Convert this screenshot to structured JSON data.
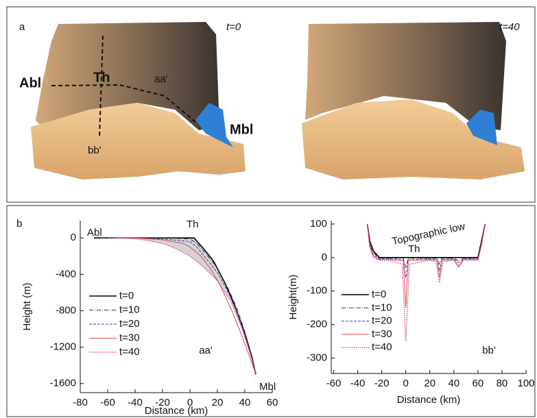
{
  "panel_a": {
    "label": "a",
    "left_time": "t=0",
    "right_time": "t=40",
    "abl": "Abl",
    "th": "Th",
    "aa": "aa'",
    "mbl": "Mbl",
    "bb": "bb'"
  },
  "panel_b": {
    "label": "b"
  },
  "chart_data": [
    {
      "type": "line",
      "xlabel": "Distance (km)",
      "ylabel": "Height (m)",
      "xlim": [
        -80,
        60
      ],
      "xticks": [
        -80,
        -60,
        -40,
        -20,
        0,
        20,
        40,
        60
      ],
      "ylim": [
        -1700,
        190
      ],
      "yticks": [
        0,
        -400,
        -800,
        -1200,
        -1600
      ],
      "annotations": [
        "Abl",
        "Th",
        "aa'",
        "Mbl"
      ],
      "series": [
        {
          "name": "t=0",
          "color": "#000000",
          "x": [
            -70,
            -40,
            -20,
            0,
            3,
            10,
            17,
            25,
            32,
            40,
            45,
            48
          ],
          "values": [
            0,
            0,
            0,
            0,
            0,
            -120,
            -250,
            -480,
            -720,
            -1050,
            -1300,
            -1500
          ]
        },
        {
          "name": "t=10",
          "color": "#333333",
          "x": [
            -65,
            -40,
            -20,
            0,
            5,
            12,
            20,
            28,
            35,
            42,
            46,
            48
          ],
          "values": [
            0,
            0,
            0,
            -10,
            -60,
            -180,
            -330,
            -560,
            -800,
            -1130,
            -1350,
            -1490
          ]
        },
        {
          "name": "t=20",
          "color": "#3a3aa8",
          "x": [
            -60,
            -40,
            -20,
            0,
            5,
            12,
            20,
            28,
            35,
            42,
            46,
            48
          ],
          "values": [
            0,
            0,
            -10,
            -40,
            -100,
            -230,
            -380,
            -600,
            -840,
            -1160,
            -1370,
            -1490
          ]
        },
        {
          "name": "t=30",
          "color": "#e04848",
          "x": [
            -55,
            -40,
            -20,
            -5,
            0,
            8,
            15,
            22,
            30,
            38,
            44,
            48
          ],
          "values": [
            0,
            0,
            -20,
            -60,
            -100,
            -200,
            -340,
            -520,
            -780,
            -1080,
            -1330,
            -1490
          ]
        },
        {
          "name": "t=40",
          "color": "#d02a80",
          "x": [
            -50,
            -40,
            -30,
            -20,
            -10,
            0,
            10,
            20,
            30,
            38,
            44,
            48
          ],
          "values": [
            0,
            -10,
            -30,
            -60,
            -120,
            -200,
            -320,
            -470,
            -700,
            -1000,
            -1280,
            -1480
          ]
        }
      ]
    },
    {
      "type": "line",
      "xlabel": "Distance (km)",
      "ylabel": "Height(m)",
      "xlim": [
        -62,
        100
      ],
      "xticks": [
        -60,
        -40,
        -20,
        0,
        20,
        40,
        60,
        80,
        100
      ],
      "ylim": [
        -346,
        110
      ],
      "yticks": [
        100,
        0,
        -100,
        -200,
        -300
      ],
      "annotations": [
        "Topographic low",
        "Th",
        "bb'"
      ],
      "series": [
        {
          "name": "t=0",
          "color": "#000000",
          "x": [
            -32,
            -30,
            -27,
            -22,
            -15,
            0,
            20,
            40,
            60,
            63,
            66
          ],
          "values": [
            100,
            50,
            20,
            0,
            0,
            0,
            0,
            0,
            0,
            50,
            100
          ]
        },
        {
          "name": "t=10",
          "color": "#333333",
          "x": [
            -32,
            -30,
            -27,
            -22,
            -15,
            -2,
            0,
            2,
            20,
            26,
            28,
            30,
            40,
            44,
            48,
            60,
            63,
            66
          ],
          "values": [
            100,
            45,
            15,
            -2,
            -2,
            -2,
            -30,
            -2,
            -2,
            -2,
            -20,
            -2,
            -2,
            -10,
            -2,
            -2,
            50,
            100
          ]
        },
        {
          "name": "t=20",
          "color": "#3a3aa8",
          "x": [
            -32,
            -30,
            -27,
            -22,
            -15,
            -2,
            0,
            2,
            20,
            26,
            28,
            30,
            40,
            44,
            48,
            60,
            63,
            66
          ],
          "values": [
            100,
            40,
            10,
            -4,
            -4,
            -6,
            -60,
            -6,
            -4,
            -5,
            -40,
            -5,
            -4,
            -15,
            -4,
            -4,
            45,
            100
          ]
        },
        {
          "name": "t=30",
          "color": "#e04848",
          "x": [
            -32,
            -30,
            -27,
            -22,
            -15,
            -2,
            0,
            2,
            20,
            26,
            28,
            30,
            40,
            44,
            48,
            60,
            63,
            66
          ],
          "values": [
            100,
            35,
            5,
            -6,
            -6,
            -10,
            -150,
            -10,
            -6,
            -8,
            -60,
            -8,
            -6,
            -25,
            -6,
            -6,
            40,
            100
          ]
        },
        {
          "name": "t=40",
          "color": "#d02a80",
          "x": [
            -32,
            -30,
            -27,
            -22,
            -15,
            -3,
            0,
            3,
            20,
            25,
            28,
            31,
            40,
            44,
            48,
            60,
            63,
            66
          ],
          "values": [
            100,
            30,
            0,
            -8,
            -8,
            -20,
            -250,
            -20,
            -8,
            -12,
            -75,
            -12,
            -8,
            -30,
            -8,
            -8,
            35,
            100
          ]
        }
      ]
    }
  ]
}
